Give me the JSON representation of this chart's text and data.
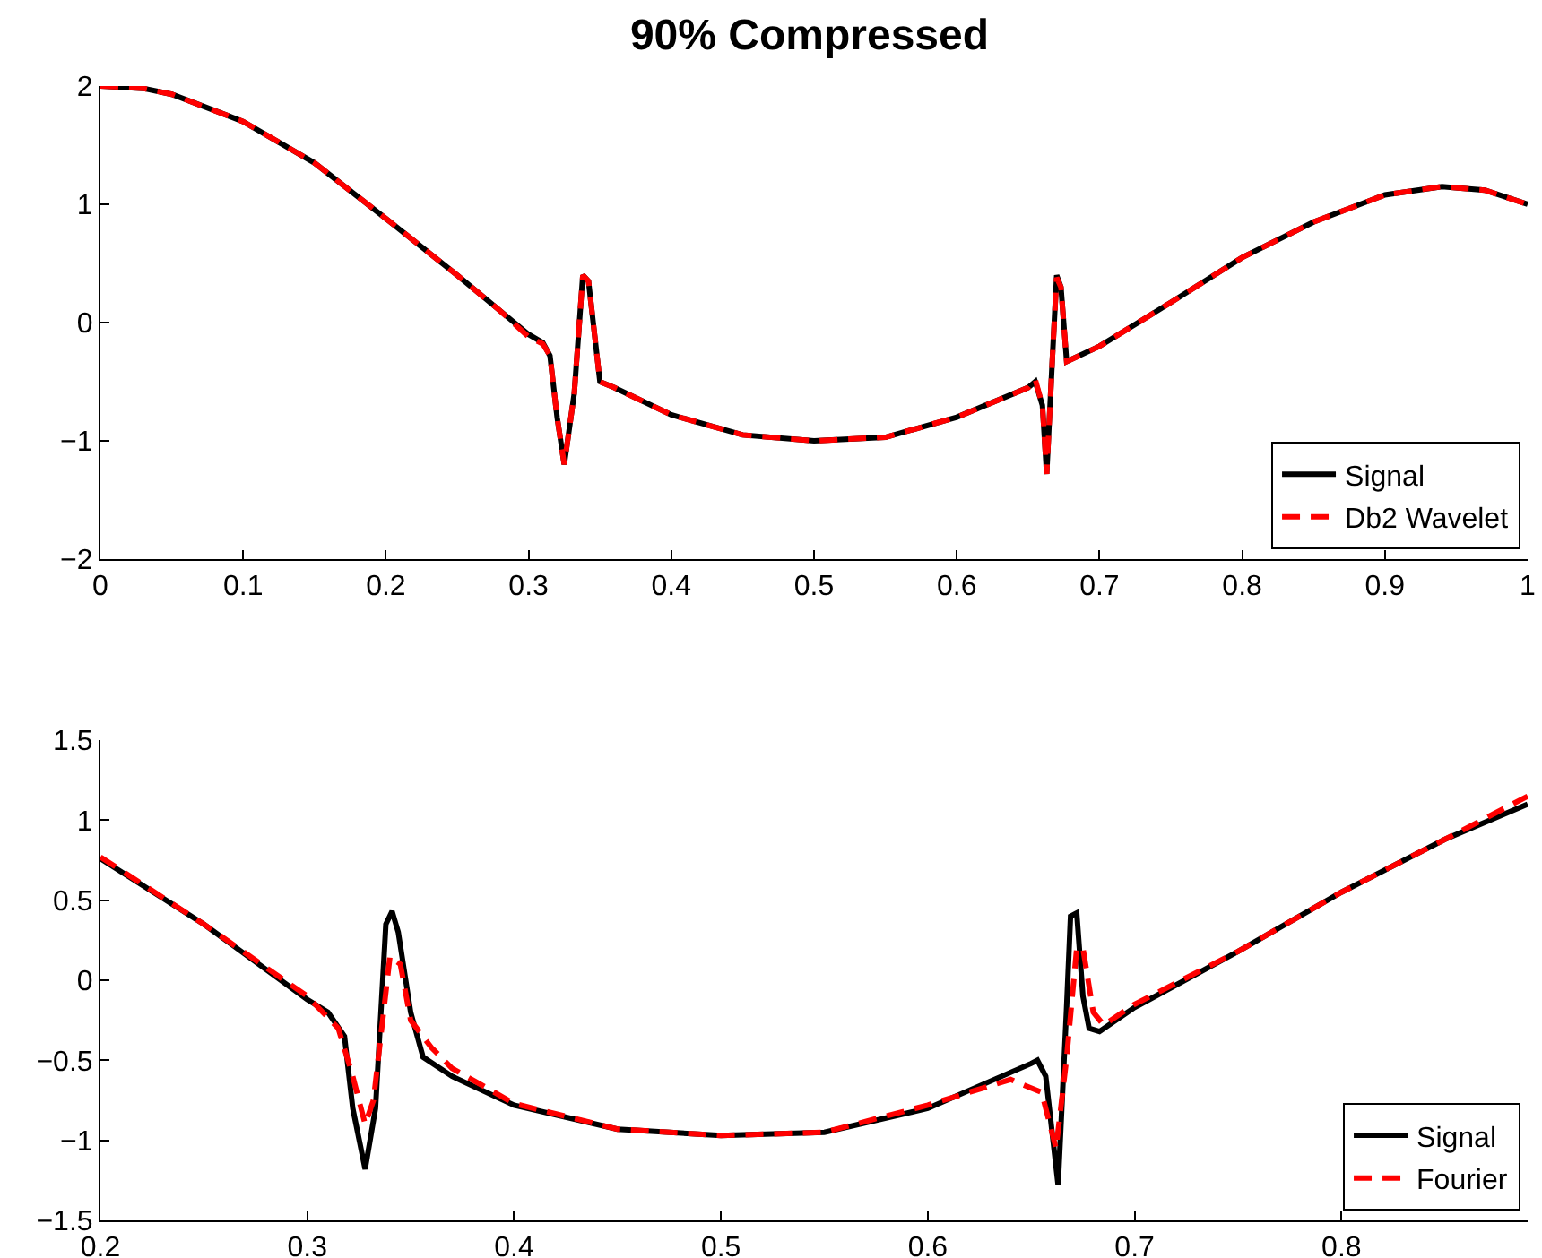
{
  "chart_data": [
    {
      "type": "line",
      "title": "90% Compressed",
      "legend": "bottom right",
      "grid": false,
      "marker": "none",
      "xlim": [
        0,
        1
      ],
      "ylim": [
        -2,
        2
      ],
      "xticks": [
        0,
        0.1,
        0.2,
        0.3,
        0.4,
        0.5,
        0.6,
        0.7,
        0.8,
        0.9,
        1
      ],
      "yticks": [
        {
          "value": -2,
          "label": "−2"
        },
        {
          "value": -1,
          "label": "−1"
        },
        0,
        1,
        2
      ],
      "x": [
        0,
        0.03,
        0.05,
        0.1,
        0.15,
        0.2,
        0.25,
        0.28,
        0.3,
        0.31,
        0.315,
        0.32,
        0.325,
        0.332,
        0.338,
        0.342,
        0.35,
        0.36,
        0.4,
        0.45,
        0.5,
        0.55,
        0.6,
        0.65,
        0.655,
        0.66,
        0.663,
        0.667,
        0.67,
        0.673,
        0.677,
        0.7,
        0.75,
        0.8,
        0.85,
        0.9,
        0.94,
        0.97,
        1
      ],
      "series": [
        {
          "name": "Signal",
          "color": "#000000",
          "line_style": "solid",
          "values": [
            2,
            1.98,
            1.93,
            1.7,
            1.35,
            0.88,
            0.4,
            0.1,
            -0.1,
            -0.17,
            -0.28,
            -0.8,
            -1.2,
            -0.6,
            0.4,
            0.35,
            -0.5,
            -0.55,
            -0.78,
            -0.95,
            -1,
            -0.97,
            -0.8,
            -0.55,
            -0.5,
            -0.7,
            -1.28,
            -0.3,
            0.4,
            0.3,
            -0.33,
            -0.2,
            0.17,
            0.55,
            0.85,
            1.08,
            1.15,
            1.12,
            1
          ]
        },
        {
          "name": "Db2 Wavelet",
          "color": "#ff0000",
          "line_style": "dashed",
          "values": [
            2,
            1.98,
            1.93,
            1.7,
            1.35,
            0.88,
            0.4,
            0.1,
            -0.12,
            -0.18,
            -0.28,
            -0.8,
            -1.2,
            -0.6,
            0.4,
            0.35,
            -0.5,
            -0.55,
            -0.78,
            -0.95,
            -1,
            -0.97,
            -0.8,
            -0.55,
            -0.48,
            -0.7,
            -1.28,
            -0.3,
            0.38,
            0.3,
            -0.33,
            -0.2,
            0.17,
            0.55,
            0.85,
            1.08,
            1.15,
            1.12,
            1
          ]
        }
      ]
    },
    {
      "type": "line",
      "legend": "bottom right",
      "grid": false,
      "marker": "none",
      "xlim": [
        0.2,
        0.89
      ],
      "ylim": [
        -1.5,
        1.5
      ],
      "xticks": [
        0.2,
        0.3,
        0.4,
        0.5,
        0.6,
        0.7,
        0.8
      ],
      "yticks": [
        {
          "value": -1.5,
          "label": "−1.5"
        },
        {
          "value": -1,
          "label": "−1"
        },
        {
          "value": -0.5,
          "label": "−0.5"
        },
        0,
        0.5,
        1,
        1.5
      ],
      "series": [
        {
          "name": "Signal",
          "color": "#000000",
          "line_style": "solid",
          "x": [
            0.2,
            0.25,
            0.3,
            0.31,
            0.318,
            0.322,
            0.328,
            0.333,
            0.338,
            0.341,
            0.344,
            0.35,
            0.356,
            0.37,
            0.4,
            0.45,
            0.5,
            0.55,
            0.6,
            0.65,
            0.653,
            0.657,
            0.663,
            0.667,
            0.669,
            0.672,
            0.675,
            0.678,
            0.683,
            0.7,
            0.75,
            0.8,
            0.85,
            0.89
          ],
          "values": [
            0.76,
            0.35,
            -0.12,
            -0.2,
            -0.35,
            -0.8,
            -1.18,
            -0.8,
            0.35,
            0.43,
            0.3,
            -0.2,
            -0.48,
            -0.6,
            -0.78,
            -0.93,
            -0.97,
            -0.95,
            -0.8,
            -0.52,
            -0.5,
            -0.6,
            -1.28,
            -0.2,
            0.4,
            0.42,
            -0.1,
            -0.3,
            -0.32,
            -0.17,
            0.18,
            0.55,
            0.88,
            1.1
          ]
        },
        {
          "name": "Fourier",
          "color": "#ff0000",
          "line_style": "dashed",
          "x": [
            0.2,
            0.25,
            0.3,
            0.315,
            0.322,
            0.328,
            0.332,
            0.34,
            0.345,
            0.35,
            0.36,
            0.37,
            0.4,
            0.45,
            0.5,
            0.55,
            0.6,
            0.64,
            0.655,
            0.662,
            0.667,
            0.672,
            0.675,
            0.68,
            0.685,
            0.7,
            0.75,
            0.8,
            0.85,
            0.89
          ],
          "values": [
            0.77,
            0.35,
            -0.1,
            -0.3,
            -0.6,
            -0.9,
            -0.75,
            0.15,
            0.1,
            -0.25,
            -0.42,
            -0.55,
            -0.77,
            -0.93,
            -0.97,
            -0.95,
            -0.78,
            -0.62,
            -0.7,
            -1.05,
            -0.5,
            0.2,
            0.2,
            -0.2,
            -0.28,
            -0.15,
            0.18,
            0.55,
            0.88,
            1.15
          ]
        }
      ]
    }
  ]
}
